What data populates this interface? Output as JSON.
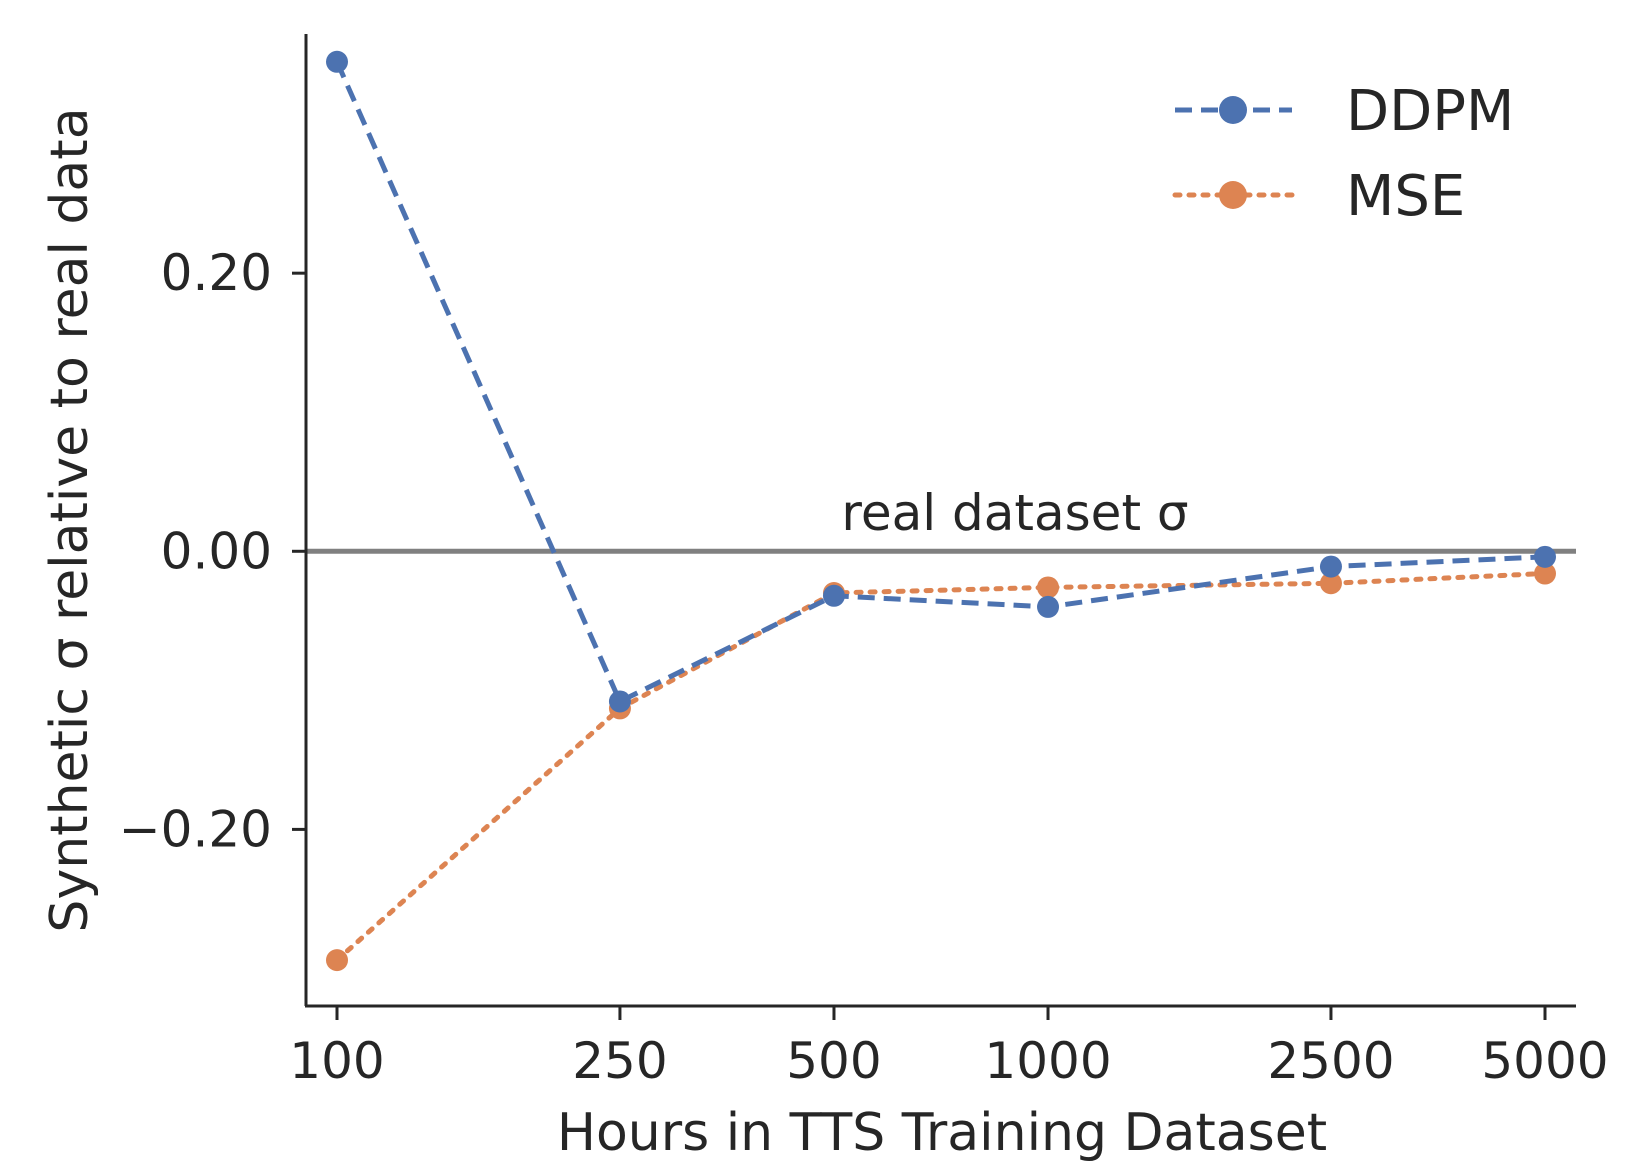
{
  "chart_data": {
    "type": "line",
    "x_scale": "log",
    "categories": [
      "100",
      "250",
      "500",
      "1000",
      "2500",
      "5000"
    ],
    "x": [
      100,
      250,
      500,
      1000,
      2500,
      5000
    ],
    "xlabel": "Hours in TTS Training Dataset",
    "ylabel": "Synthetic σ relative to real data",
    "ylim": [
      -0.327,
      0.372
    ],
    "yticks": [
      -0.2,
      0.0,
      0.2
    ],
    "ytick_labels": [
      "−0.20",
      "0.00",
      "0.20"
    ],
    "grid": false,
    "legend": "top-right",
    "series": [
      {
        "name": "DDPM",
        "color": "#4c72b0",
        "linestyle": "dashed",
        "values": [
          0.352,
          -0.108,
          -0.032,
          -0.04,
          -0.011,
          -0.004
        ]
      },
      {
        "name": "MSE",
        "color": "#dd8452",
        "linestyle": "dotted",
        "values": [
          -0.294,
          -0.113,
          -0.03,
          -0.026,
          -0.023,
          -0.016
        ]
      }
    ],
    "reference_line": {
      "y": 0.0,
      "color": "#808080",
      "label": "real dataset σ"
    }
  }
}
